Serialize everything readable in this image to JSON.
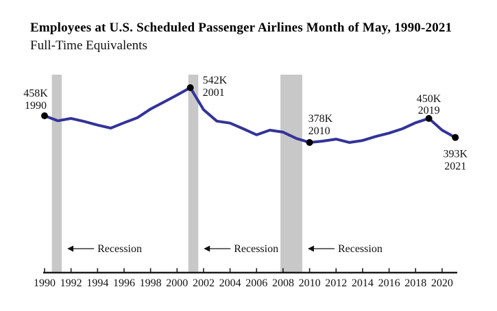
{
  "chart": {
    "title": "Employees at U.S. Scheduled Passenger Airlines Month of May, 1990-2021",
    "subtitle": "Full-Time Equivalents"
  },
  "chart_data": {
    "type": "line",
    "title": "Employees at U.S. Scheduled Passenger Airlines Month of May, 1990-2021",
    "subtitle": "Full-Time Equivalents",
    "unit": "thousands of full-time equivalent employees",
    "x": [
      1990,
      1991,
      1992,
      1993,
      1994,
      1995,
      1996,
      1997,
      1998,
      1999,
      2000,
      2001,
      2002,
      2003,
      2004,
      2005,
      2006,
      2007,
      2008,
      2009,
      2010,
      2011,
      2012,
      2013,
      2014,
      2015,
      2016,
      2017,
      2018,
      2019,
      2020,
      2021
    ],
    "values": [
      458,
      443,
      450,
      441,
      430,
      421,
      437,
      452,
      478,
      499,
      520,
      542,
      476,
      442,
      436,
      419,
      401,
      415,
      409,
      390,
      378,
      382,
      388,
      378,
      384,
      396,
      406,
      419,
      437,
      450,
      415,
      393
    ],
    "xlim": [
      1989.9,
      2021.3
    ],
    "x_ticks": [
      1990,
      1992,
      1994,
      1996,
      1998,
      2000,
      2002,
      2004,
      2006,
      2008,
      2010,
      2012,
      2014,
      2016,
      2018,
      2020
    ],
    "grid": false,
    "y_axis_shown": false,
    "line_color": "#333399",
    "marker_color": "#000000",
    "axis_color": "#1a1a1a",
    "recession_band_color": "#c8c8c8",
    "annotations": [
      {
        "value_label": "458K",
        "year_label": "1990",
        "year": 1990,
        "value": 458,
        "placement": "above-left"
      },
      {
        "value_label": "542K",
        "year_label": "2001",
        "year": 2001,
        "value": 542,
        "placement": "right"
      },
      {
        "value_label": "378K",
        "year_label": "2010",
        "year": 2010,
        "value": 378,
        "placement": "above-start"
      },
      {
        "value_label": "450K",
        "year_label": "2019",
        "year": 2019,
        "value": 450,
        "placement": "above"
      },
      {
        "value_label": "393K",
        "year_label": "2021",
        "year": 2021,
        "value": 393,
        "placement": "below"
      }
    ],
    "recessions": [
      {
        "start": 1990.55,
        "end": 1991.3,
        "label": "Recession"
      },
      {
        "start": 2000.85,
        "end": 2001.6,
        "label": "Recession"
      },
      {
        "start": 2007.8,
        "end": 2009.45,
        "label": "Recession"
      }
    ]
  }
}
